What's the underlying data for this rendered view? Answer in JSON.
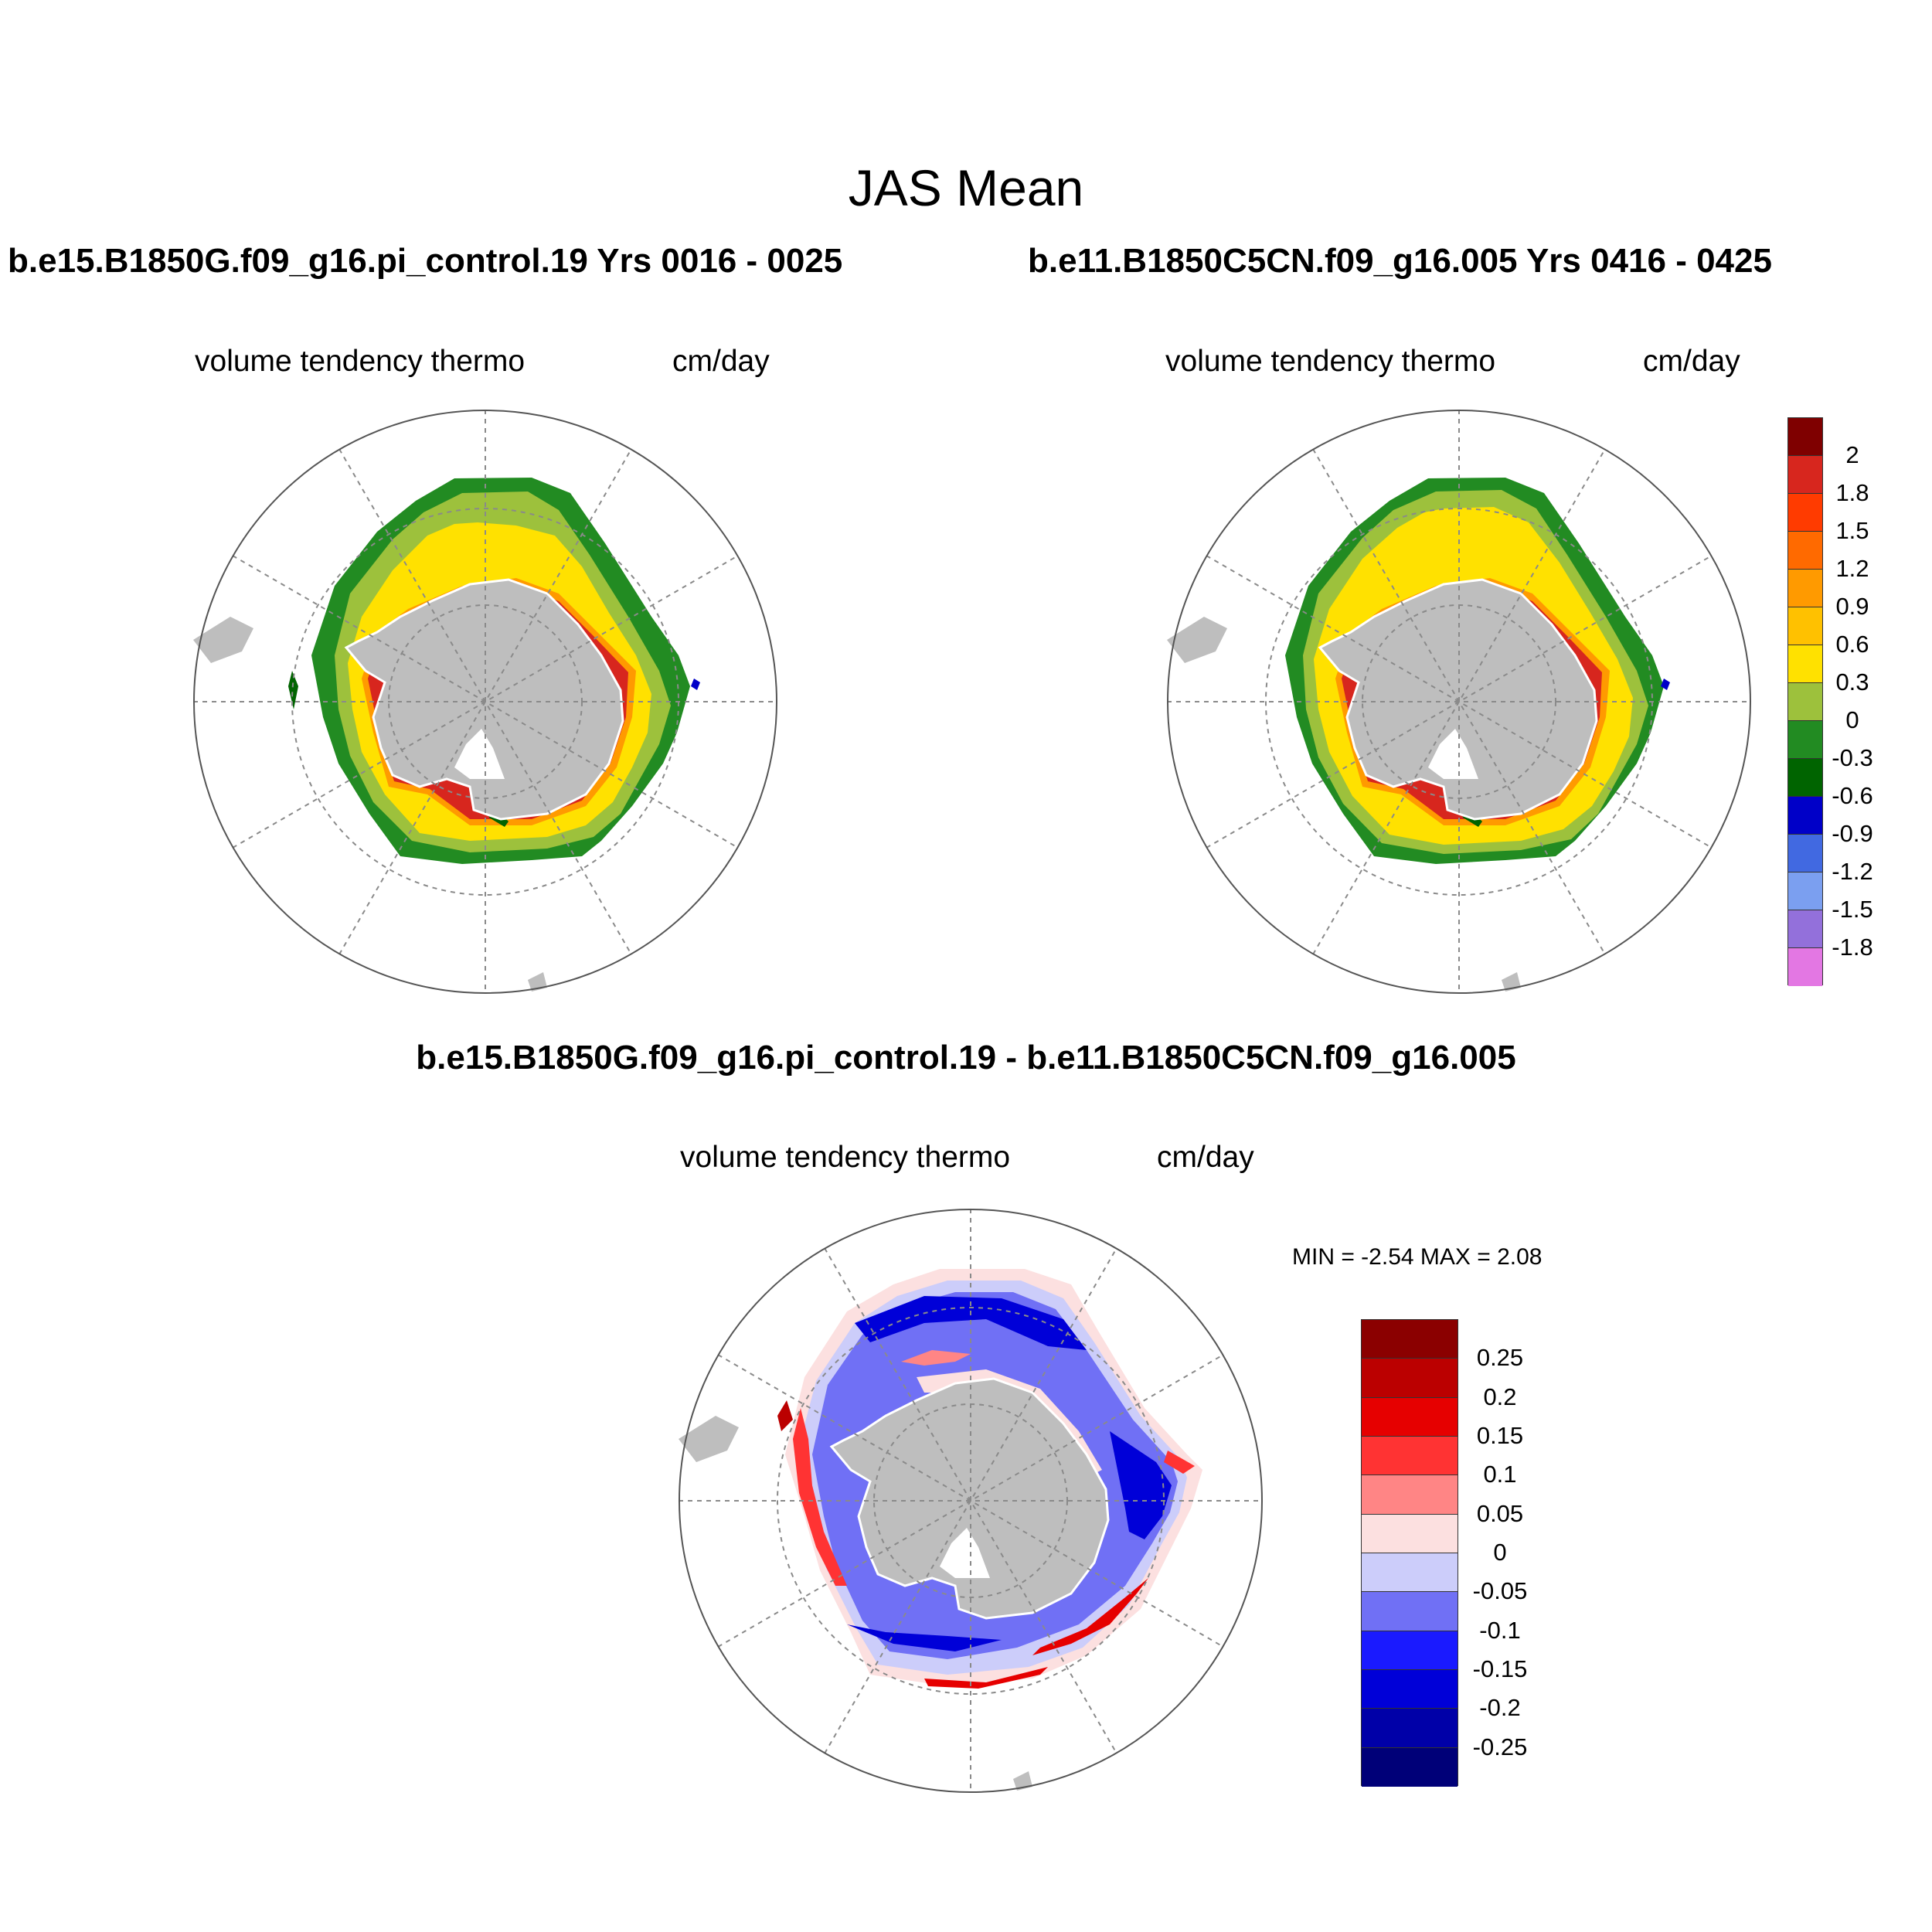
{
  "title": "JAS Mean",
  "panels": {
    "left": {
      "case_title": "b.e15.B1850G.f09_g16.pi_control.19  Yrs 0016 - 0025",
      "variable": "volume tendency thermo",
      "units": "cm/day"
    },
    "right": {
      "case_title": "b.e11.B1850C5CN.f09_g16.005  Yrs 0416 - 0425",
      "variable": "volume tendency thermo",
      "units": "cm/day"
    },
    "diff": {
      "case_title": "b.e15.B1850G.f09_g16.pi_control.19 - b.e11.B1850C5CN.f09_g16.005",
      "variable": "volume tendency thermo",
      "units": "cm/day",
      "min_max": "MIN =  -2.54 MAX =   2.08"
    }
  },
  "colorbar_main": {
    "labels": [
      "2",
      "1.8",
      "1.5",
      "1.2",
      "0.9",
      "0.6",
      "0.3",
      "0",
      "-0.3",
      "-0.6",
      "-0.9",
      "-1.2",
      "-1.5",
      "-1.8"
    ],
    "colors": [
      "#7f0000",
      "#d7261e",
      "#ff3b00",
      "#ff6a00",
      "#ff9a00",
      "#ffc100",
      "#ffe100",
      "#9dc13c",
      "#228b22",
      "#006400",
      "#0000c8",
      "#4169e1",
      "#7b9ff0",
      "#9370db",
      "#e377e3"
    ]
  },
  "colorbar_diff": {
    "labels": [
      "0.25",
      "0.2",
      "0.15",
      "0.1",
      "0.05",
      "0",
      "-0.05",
      "-0.1",
      "-0.15",
      "-0.2",
      "-0.25"
    ],
    "colors": [
      "#8b0000",
      "#bb0000",
      "#e60000",
      "#ff3333",
      "#ff8585",
      "#fce0e0",
      "#cccdfa",
      "#7070f5",
      "#1a1aff",
      "#0000d8",
      "#0000a8",
      "#000078"
    ]
  },
  "map_colors": {
    "land": "#bebebe",
    "grid": "#8a8a8a"
  }
}
